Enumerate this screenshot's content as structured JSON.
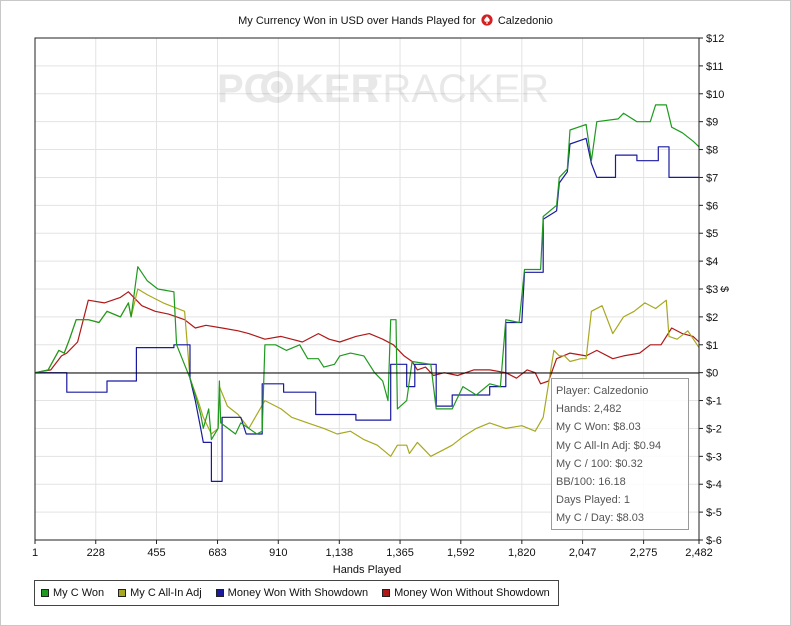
{
  "window": {
    "title_prefix": "My Currency Won in USD over Hands Played for",
    "player": "Calzedonio",
    "watermark_a": "PO",
    "watermark_b": "KER",
    "watermark_c": "TRACKER"
  },
  "chart_data": {
    "type": "line",
    "title": "My Currency Won in USD over Hands Played for Calzedonio",
    "xlabel": "Hands Played",
    "ylabel": "$",
    "xlim": [
      1,
      2482
    ],
    "ylim": [
      -6,
      12
    ],
    "x_ticks": [
      1,
      228,
      455,
      683,
      910,
      1138,
      1365,
      1592,
      1820,
      2047,
      2275,
      2482
    ],
    "x_tick_labels": [
      "1",
      "228",
      "455",
      "683",
      "910",
      "1,138",
      "1,365",
      "1,592",
      "1,820",
      "2,047",
      "2,275",
      "2,482"
    ],
    "y_ticks": [
      12,
      11,
      10,
      9,
      8,
      7,
      6,
      5,
      4,
      3,
      2,
      1,
      0,
      -1,
      -2,
      -3,
      -4,
      -5,
      -6
    ],
    "y_tick_labels": [
      "$12",
      "$11",
      "$10",
      "$9",
      "$8",
      "$7",
      "$6",
      "$5",
      "$4",
      "$3",
      "$2",
      "$1",
      "$0",
      "$-1",
      "$-2",
      "$-3",
      "$-4",
      "$-5",
      "$-6"
    ],
    "legend_position": "bottom-left",
    "series": [
      {
        "name": "My C Won",
        "color": "#1e9a1e",
        "points": [
          [
            1,
            0
          ],
          [
            50,
            0.1
          ],
          [
            90,
            0.8
          ],
          [
            110,
            0.7
          ],
          [
            130,
            1.2
          ],
          [
            155,
            1.9
          ],
          [
            200,
            1.9
          ],
          [
            240,
            1.8
          ],
          [
            270,
            2.2
          ],
          [
            320,
            2.0
          ],
          [
            350,
            2.5
          ],
          [
            360,
            2.0
          ],
          [
            385,
            3.8
          ],
          [
            420,
            3.3
          ],
          [
            460,
            3.0
          ],
          [
            520,
            2.9
          ],
          [
            530,
            1.0
          ],
          [
            580,
            -0.2
          ],
          [
            600,
            -0.8
          ],
          [
            620,
            -1.5
          ],
          [
            630,
            -2.0
          ],
          [
            650,
            -1.3
          ],
          [
            660,
            -2.4
          ],
          [
            685,
            -2.0
          ],
          [
            690,
            -0.3
          ],
          [
            695,
            -1.8
          ],
          [
            750,
            -2.2
          ],
          [
            770,
            -1.8
          ],
          [
            830,
            -2.2
          ],
          [
            850,
            -2.1
          ],
          [
            860,
            1.0
          ],
          [
            900,
            1.0
          ],
          [
            940,
            0.8
          ],
          [
            990,
            1.0
          ],
          [
            1020,
            0.5
          ],
          [
            1060,
            0.5
          ],
          [
            1080,
            0.2
          ],
          [
            1120,
            0.3
          ],
          [
            1140,
            0.6
          ],
          [
            1180,
            0.7
          ],
          [
            1230,
            0.6
          ],
          [
            1270,
            0.0
          ],
          [
            1300,
            -0.3
          ],
          [
            1320,
            -1.0
          ],
          [
            1330,
            1.9
          ],
          [
            1350,
            1.9
          ],
          [
            1355,
            -1.3
          ],
          [
            1390,
            -1.0
          ],
          [
            1410,
            0.4
          ],
          [
            1480,
            0.3
          ],
          [
            1500,
            -1.3
          ],
          [
            1560,
            -1.3
          ],
          [
            1600,
            -0.5
          ],
          [
            1650,
            -0.8
          ],
          [
            1700,
            -0.4
          ],
          [
            1740,
            -0.5
          ],
          [
            1760,
            1.9
          ],
          [
            1810,
            1.8
          ],
          [
            1830,
            3.7
          ],
          [
            1890,
            3.7
          ],
          [
            1900,
            5.6
          ],
          [
            1950,
            6.0
          ],
          [
            1960,
            7.0
          ],
          [
            1990,
            7.3
          ],
          [
            2000,
            8.7
          ],
          [
            2060,
            8.9
          ],
          [
            2080,
            7.6
          ],
          [
            2100,
            9.0
          ],
          [
            2180,
            9.1
          ],
          [
            2200,
            9.3
          ],
          [
            2250,
            9.0
          ],
          [
            2300,
            9.0
          ],
          [
            2320,
            9.6
          ],
          [
            2360,
            9.6
          ],
          [
            2380,
            8.8
          ],
          [
            2420,
            8.6
          ],
          [
            2460,
            8.3
          ],
          [
            2482,
            8.1
          ]
        ]
      },
      {
        "name": "My C All-In Adj",
        "color": "#a8a820",
        "points": [
          [
            1,
            0
          ],
          [
            50,
            0.1
          ],
          [
            90,
            0.8
          ],
          [
            110,
            0.7
          ],
          [
            130,
            1.2
          ],
          [
            155,
            1.9
          ],
          [
            200,
            1.9
          ],
          [
            240,
            1.8
          ],
          [
            270,
            2.2
          ],
          [
            320,
            2.0
          ],
          [
            350,
            2.5
          ],
          [
            360,
            2.0
          ],
          [
            385,
            3.0
          ],
          [
            420,
            2.8
          ],
          [
            480,
            2.5
          ],
          [
            560,
            2.2
          ],
          [
            580,
            -0.2
          ],
          [
            610,
            -1.0
          ],
          [
            630,
            -1.6
          ],
          [
            660,
            -2.2
          ],
          [
            685,
            -2.0
          ],
          [
            690,
            -0.5
          ],
          [
            720,
            -1.2
          ],
          [
            760,
            -1.5
          ],
          [
            800,
            -2.0
          ],
          [
            860,
            -1.0
          ],
          [
            920,
            -1.3
          ],
          [
            960,
            -1.6
          ],
          [
            1020,
            -1.8
          ],
          [
            1080,
            -2.0
          ],
          [
            1130,
            -2.2
          ],
          [
            1180,
            -2.1
          ],
          [
            1230,
            -2.4
          ],
          [
            1280,
            -2.6
          ],
          [
            1330,
            -3.0
          ],
          [
            1355,
            -2.6
          ],
          [
            1390,
            -2.6
          ],
          [
            1400,
            -2.9
          ],
          [
            1430,
            -2.5
          ],
          [
            1480,
            -3.0
          ],
          [
            1520,
            -2.8
          ],
          [
            1560,
            -2.6
          ],
          [
            1600,
            -2.3
          ],
          [
            1650,
            -2.0
          ],
          [
            1700,
            -1.8
          ],
          [
            1760,
            -2.0
          ],
          [
            1820,
            -1.9
          ],
          [
            1870,
            -2.1
          ],
          [
            1900,
            -1.6
          ],
          [
            1940,
            0.8
          ],
          [
            1960,
            0.6
          ],
          [
            1980,
            0.6
          ],
          [
            2000,
            0.4
          ],
          [
            2040,
            0.5
          ],
          [
            2060,
            0.5
          ],
          [
            2080,
            2.2
          ],
          [
            2120,
            2.4
          ],
          [
            2160,
            1.4
          ],
          [
            2200,
            2.0
          ],
          [
            2240,
            2.2
          ],
          [
            2280,
            2.5
          ],
          [
            2320,
            2.3
          ],
          [
            2360,
            2.6
          ],
          [
            2370,
            1.3
          ],
          [
            2400,
            1.2
          ],
          [
            2440,
            1.5
          ],
          [
            2482,
            0.9
          ]
        ]
      },
      {
        "name": "Money Won With Showdown",
        "color": "#1a1aa0",
        "points": [
          [
            1,
            0
          ],
          [
            120,
            0
          ],
          [
            120,
            -0.7
          ],
          [
            270,
            -0.7
          ],
          [
            270,
            -0.3
          ],
          [
            380,
            -0.3
          ],
          [
            380,
            0.9
          ],
          [
            520,
            0.9
          ],
          [
            520,
            1.0
          ],
          [
            580,
            1.0
          ],
          [
            580,
            -0.2
          ],
          [
            600,
            -1.0
          ],
          [
            620,
            -2.0
          ],
          [
            630,
            -2.5
          ],
          [
            660,
            -2.5
          ],
          [
            660,
            -3.9
          ],
          [
            700,
            -3.9
          ],
          [
            700,
            -1.6
          ],
          [
            770,
            -1.6
          ],
          [
            790,
            -2.2
          ],
          [
            850,
            -2.2
          ],
          [
            850,
            -0.4
          ],
          [
            930,
            -0.4
          ],
          [
            930,
            -0.7
          ],
          [
            1050,
            -0.7
          ],
          [
            1050,
            -1.5
          ],
          [
            1200,
            -1.5
          ],
          [
            1200,
            -1.7
          ],
          [
            1330,
            -1.7
          ],
          [
            1330,
            0.3
          ],
          [
            1390,
            0.3
          ],
          [
            1390,
            -0.5
          ],
          [
            1420,
            -0.5
          ],
          [
            1420,
            0.3
          ],
          [
            1500,
            0.3
          ],
          [
            1500,
            -1.2
          ],
          [
            1560,
            -1.2
          ],
          [
            1560,
            -0.8
          ],
          [
            1700,
            -0.8
          ],
          [
            1700,
            -0.5
          ],
          [
            1760,
            -0.5
          ],
          [
            1760,
            1.8
          ],
          [
            1820,
            1.8
          ],
          [
            1830,
            3.6
          ],
          [
            1900,
            3.6
          ],
          [
            1900,
            5.5
          ],
          [
            1950,
            5.8
          ],
          [
            1960,
            6.8
          ],
          [
            1990,
            7.2
          ],
          [
            2000,
            8.2
          ],
          [
            2060,
            8.4
          ],
          [
            2080,
            7.5
          ],
          [
            2100,
            7.0
          ],
          [
            2170,
            7.0
          ],
          [
            2170,
            7.8
          ],
          [
            2250,
            7.8
          ],
          [
            2250,
            7.6
          ],
          [
            2330,
            7.6
          ],
          [
            2330,
            8.1
          ],
          [
            2370,
            8.1
          ],
          [
            2370,
            7.0
          ],
          [
            2482,
            7.0
          ]
        ]
      },
      {
        "name": "Money Won Without Showdown",
        "color": "#b01818",
        "points": [
          [
            1,
            0
          ],
          [
            60,
            0.1
          ],
          [
            100,
            0.6
          ],
          [
            120,
            0.7
          ],
          [
            160,
            1.1
          ],
          [
            200,
            2.6
          ],
          [
            260,
            2.5
          ],
          [
            320,
            2.7
          ],
          [
            350,
            2.9
          ],
          [
            370,
            2.7
          ],
          [
            400,
            2.4
          ],
          [
            450,
            2.2
          ],
          [
            500,
            2.1
          ],
          [
            560,
            1.9
          ],
          [
            600,
            1.6
          ],
          [
            640,
            1.7
          ],
          [
            700,
            1.6
          ],
          [
            760,
            1.5
          ],
          [
            800,
            1.4
          ],
          [
            860,
            1.2
          ],
          [
            920,
            1.3
          ],
          [
            960,
            1.2
          ],
          [
            1000,
            1.1
          ],
          [
            1060,
            1.4
          ],
          [
            1100,
            1.2
          ],
          [
            1140,
            1.1
          ],
          [
            1200,
            1.3
          ],
          [
            1250,
            1.4
          ],
          [
            1300,
            1.2
          ],
          [
            1340,
            1.0
          ],
          [
            1380,
            0.6
          ],
          [
            1410,
            0.4
          ],
          [
            1430,
            0.1
          ],
          [
            1460,
            0.2
          ],
          [
            1490,
            -0.1
          ],
          [
            1530,
            0.0
          ],
          [
            1580,
            -0.1
          ],
          [
            1640,
            0.1
          ],
          [
            1700,
            0.1
          ],
          [
            1760,
            0.0
          ],
          [
            1800,
            -0.2
          ],
          [
            1840,
            0.1
          ],
          [
            1870,
            0.0
          ],
          [
            1890,
            -0.4
          ],
          [
            1920,
            -0.3
          ],
          [
            1950,
            0.5
          ],
          [
            2000,
            0.7
          ],
          [
            2060,
            0.6
          ],
          [
            2100,
            0.8
          ],
          [
            2160,
            0.5
          ],
          [
            2200,
            0.6
          ],
          [
            2260,
            0.7
          ],
          [
            2300,
            1.0
          ],
          [
            2340,
            1.0
          ],
          [
            2380,
            1.6
          ],
          [
            2420,
            1.4
          ],
          [
            2460,
            1.3
          ],
          [
            2482,
            1.1
          ]
        ]
      }
    ]
  },
  "tooltip": {
    "player": "Player: Calzedonio",
    "hands": "Hands: 2,482",
    "won": "My C Won: $8.03",
    "allin": "My C All-In Adj: $0.94",
    "per100": "My C / 100: $0.32",
    "bb100": "BB/100: 16.18",
    "days": "Days Played: 1",
    "perday": "My C / Day: $8.03"
  }
}
